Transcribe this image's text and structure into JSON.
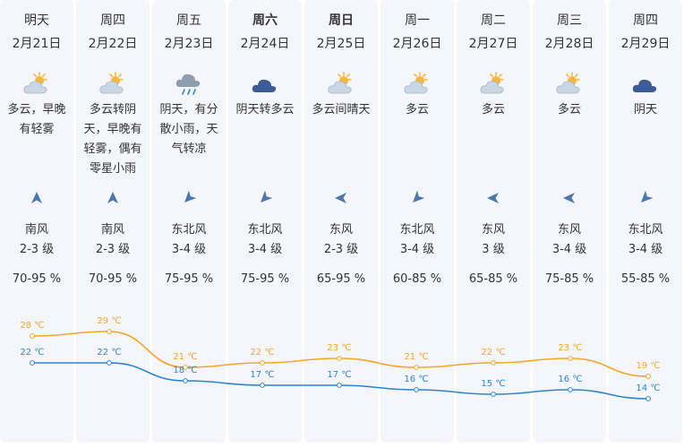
{
  "days": [
    {
      "name": "明天",
      "date": "2月21日",
      "icon": "partly-cloudy-sun-icon",
      "desc": "多云，早晚有轻雾",
      "wind_dir": "南风",
      "wind_level": "2-3 级",
      "wind_icon": "wind-arrow-north-icon",
      "humidity": "70-95 %",
      "high": "28 ℃",
      "low": "22 ℃"
    },
    {
      "name": "周四",
      "date": "2月22日",
      "icon": "partly-cloudy-sun-icon",
      "desc": "多云转阴天，早晚有轻雾，偶有零星小雨",
      "wind_dir": "南风",
      "wind_level": "2-3 级",
      "wind_icon": "wind-arrow-north-icon",
      "humidity": "70-95 %",
      "high": "29 ℃",
      "low": "22 ℃"
    },
    {
      "name": "周五",
      "date": "2月23日",
      "icon": "cloud-rain-icon",
      "desc": "阴天，有分散小雨，天气转凉",
      "wind_dir": "东北风",
      "wind_level": "3-4 级",
      "wind_icon": "wind-arrow-southwest-icon",
      "humidity": "75-95 %",
      "high": "21 ℃",
      "low": "18 ℃"
    },
    {
      "name": "周六",
      "date": "2月24日",
      "icon": "cloud-icon",
      "desc": "阴天转多云",
      "wind_dir": "东北风",
      "wind_level": "3-4 级",
      "wind_icon": "wind-arrow-southwest-icon",
      "humidity": "75-95 %",
      "high": "22 ℃",
      "low": "17 ℃"
    },
    {
      "name": "周日",
      "date": "2月25日",
      "icon": "partly-cloudy-sun-icon",
      "desc": "多云间晴天",
      "wind_dir": "东风",
      "wind_level": "2-3 级",
      "wind_icon": "wind-arrow-west-icon",
      "humidity": "65-95 %",
      "high": "23 ℃",
      "low": "17 ℃"
    },
    {
      "name": "周一",
      "date": "2月26日",
      "icon": "partly-cloudy-sun-icon",
      "desc": "多云",
      "wind_dir": "东北风",
      "wind_level": "3-4 级",
      "wind_icon": "wind-arrow-southwest-icon",
      "humidity": "60-85 %",
      "high": "21 ℃",
      "low": "16 ℃"
    },
    {
      "name": "周二",
      "date": "2月27日",
      "icon": "partly-cloudy-sun-icon",
      "desc": "多云",
      "wind_dir": "东风",
      "wind_level": "3 级",
      "wind_icon": "wind-arrow-west-icon",
      "humidity": "65-85 %",
      "high": "22 ℃",
      "low": "15 ℃"
    },
    {
      "name": "周三",
      "date": "2月28日",
      "icon": "partly-cloudy-sun-icon",
      "desc": "多云",
      "wind_dir": "东风",
      "wind_level": "3-4 级",
      "wind_icon": "wind-arrow-west-icon",
      "humidity": "75-85 %",
      "high": "23 ℃",
      "low": "16 ℃"
    },
    {
      "name": "周四",
      "date": "2月29日",
      "icon": "cloud-icon",
      "desc": "阴天",
      "wind_dir": "东北风",
      "wind_level": "3-4 级",
      "wind_icon": "wind-arrow-southwest-icon",
      "humidity": "55-85 %",
      "high": "19 ℃",
      "low": "14 ℃"
    }
  ],
  "colors": {
    "high_line": "#f5a623",
    "low_line": "#2b85d6",
    "wind_arrow": "#4a79ad",
    "cloud_light": "#c9d6e3",
    "cloud_dark": "#3d5a99",
    "sun": "#f6b73c"
  }
}
